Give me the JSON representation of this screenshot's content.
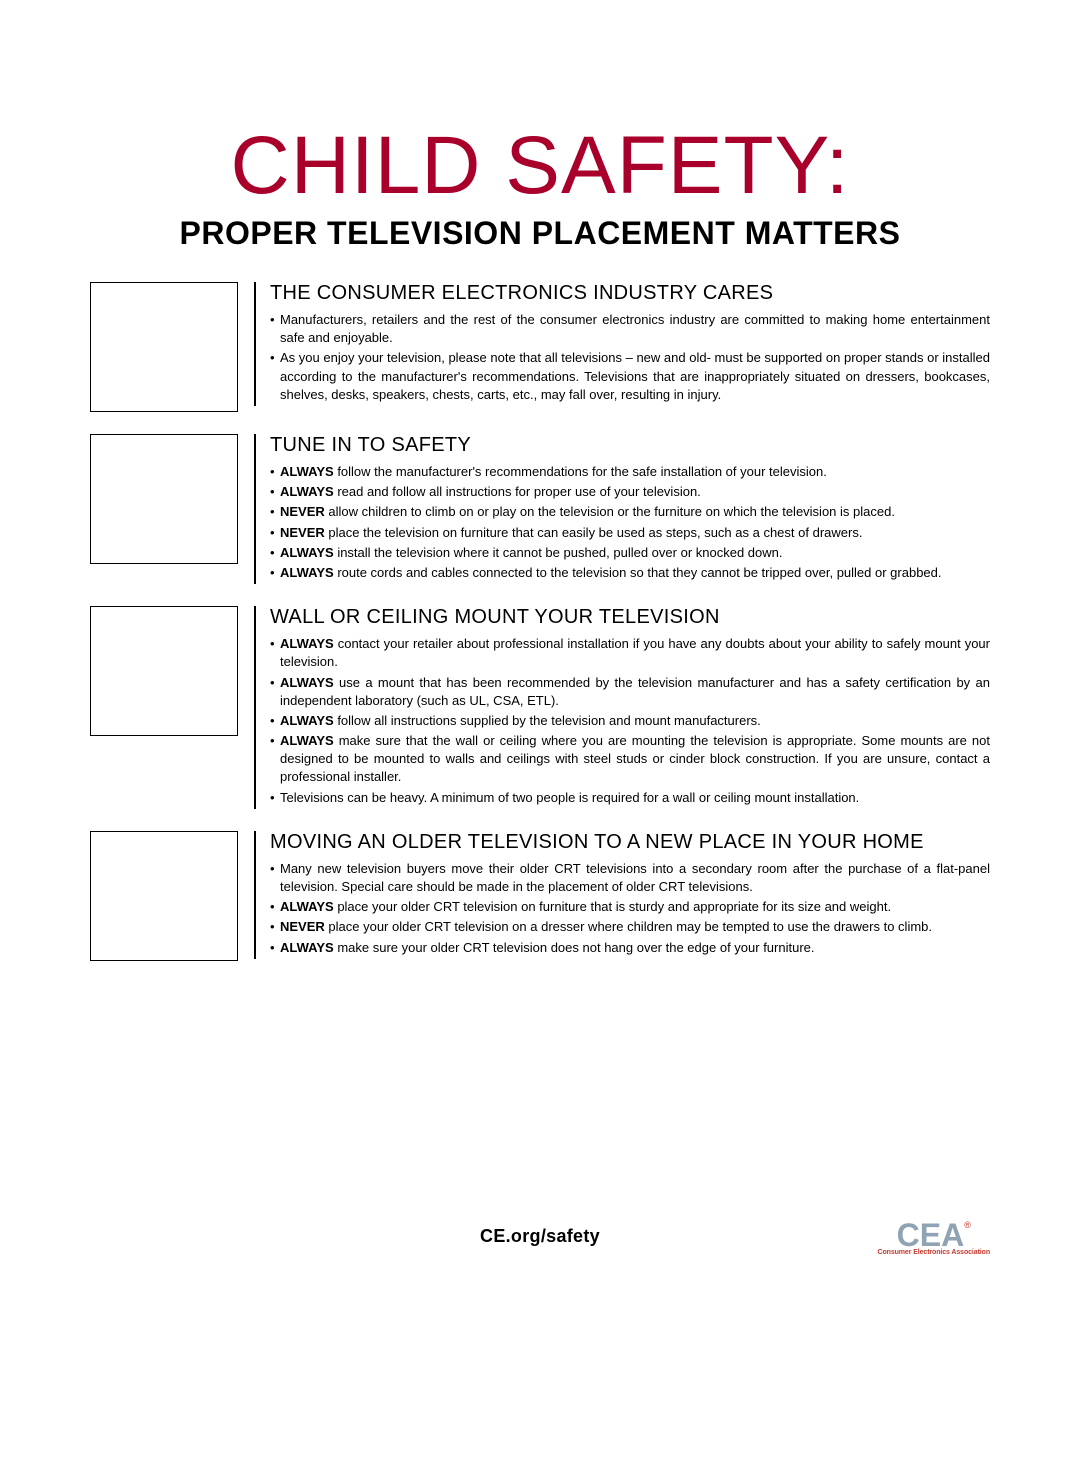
{
  "colors": {
    "title_red": "#a8002a",
    "text_black": "#000000",
    "logo_gray": "#8fa3b5",
    "logo_red": "#c4392e",
    "bg": "#ffffff"
  },
  "typography": {
    "main_title_size": 82,
    "subtitle_size": 32,
    "heading_size": 20,
    "body_size": 13,
    "footer_url_size": 18
  },
  "title": "CHILD SAFETY:",
  "subtitle": "PROPER TELEVISION PLACEMENT MATTERS",
  "sections": [
    {
      "heading": "THE CONSUMER ELECTRONICS INDUSTRY CARES",
      "items": [
        {
          "kw": null,
          "text": "Manufacturers, retailers and the rest of the consumer electronics industry are committed to making home entertainment safe and enjoyable."
        },
        {
          "kw": null,
          "text": "As you enjoy your television, please note that all televisions – new and old- must be supported on proper stands or installed according to the manufacturer's recommendations. Televisions that are inappropriately situated on dressers, bookcases, shelves, desks, speakers, chests, carts, etc., may fall over, resulting in injury."
        }
      ]
    },
    {
      "heading": "TUNE IN TO SAFETY",
      "items": [
        {
          "kw": "ALWAYS",
          "text": " follow the manufacturer's recommendations for the safe installation of your television."
        },
        {
          "kw": "ALWAYS",
          "text": " read and follow all instructions for proper use of your television."
        },
        {
          "kw": "NEVER",
          "text": " allow children to climb on or play on the television or the furniture on which the television is placed."
        },
        {
          "kw": "NEVER",
          "text": " place the television on furniture that can easily be used as steps, such as a chest of drawers."
        },
        {
          "kw": "ALWAYS",
          "text": " install the television where it cannot be pushed, pulled over or knocked down."
        },
        {
          "kw": "ALWAYS",
          "text": " route cords and cables connected to the television so that they cannot be tripped over, pulled or grabbed."
        }
      ]
    },
    {
      "heading": "WALL OR CEILING MOUNT YOUR TELEVISION",
      "items": [
        {
          "kw": "ALWAYS",
          "text": " contact your retailer about professional installation if you have any doubts about your ability to safely mount your television."
        },
        {
          "kw": "ALWAYS",
          "text": " use a mount that has been recommended by the television manufacturer and has a safety certification by an independent laboratory (such as UL, CSA, ETL)."
        },
        {
          "kw": "ALWAYS",
          "text": " follow all instructions supplied by the television and mount manufacturers."
        },
        {
          "kw": "ALWAYS",
          "text": " make sure that the wall or ceiling where you are mounting the television is appropriate. Some mounts are not designed to be mounted to walls and ceilings with steel studs or cinder block construction. If you are unsure, contact a professional installer."
        },
        {
          "kw": null,
          "text": "Televisions can be heavy.  A minimum of two people is required for a wall or ceiling mount installation."
        }
      ]
    },
    {
      "heading": "MOVING AN OLDER TELEVISION TO A NEW PLACE IN YOUR HOME",
      "items": [
        {
          "kw": null,
          "text": "Many new television buyers move their older CRT televisions into a secondary room after the purchase of a flat-panel television. Special care should be made in the placement of older CRT televisions."
        },
        {
          "kw": "ALWAYS",
          "text": " place your older CRT television on furniture that is sturdy and appropriate for its size and weight."
        },
        {
          "kw": "NEVER",
          "text": " place your older CRT television on a dresser where children may be tempted to use the drawers to climb."
        },
        {
          "kw": "ALWAYS",
          "text": " make sure your older CRT television does not hang over the edge of your furniture."
        }
      ]
    }
  ],
  "footer_url": "CE.org/safety",
  "logo": {
    "main": "CEA",
    "reg": "®",
    "sub": "Consumer Electronics Association"
  }
}
